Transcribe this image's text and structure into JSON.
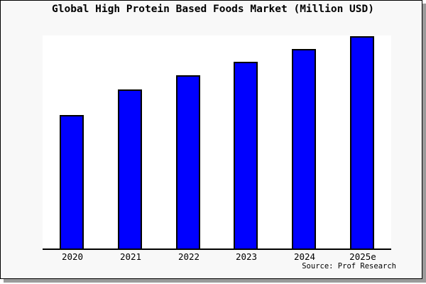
{
  "source": "Source: Prof Research",
  "chart_data": {
    "type": "bar",
    "title": "Global High Protein Based Foods Market (Million USD)",
    "categories": [
      "2020",
      "2021",
      "2022",
      "2023",
      "2024",
      "2025e"
    ],
    "values": [
      63,
      75,
      81.7,
      88,
      94,
      100
    ],
    "value_scale_note": "no y-axis labels shown; values estimated as bar height percent of tallest bar (2025e = 100)",
    "xlabel": "",
    "ylabel": "",
    "ylim": [
      0,
      100.3
    ],
    "grid": false,
    "legend": false,
    "bar_color": "#0000FF",
    "bar_border_color": "#000000"
  },
  "colors": {
    "frame_background": "#f8f8f8",
    "plot_background": "#ffffff",
    "frame_border": "#000000",
    "shadow": "#9b9b9b",
    "axis": "#000000",
    "text": "#000000"
  }
}
